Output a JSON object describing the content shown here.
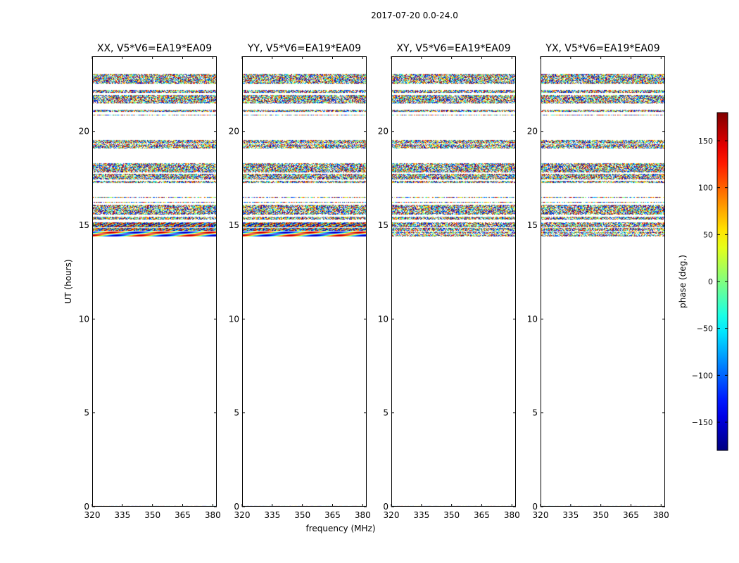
{
  "figure_title": "2017-07-20 0.0-24.0",
  "chart_data": {
    "type": "heatmap",
    "title": "2017-07-20 0.0-24.0",
    "xlabel": "frequency (MHz)",
    "ylabel": "UT (hours)",
    "xlim": [
      320,
      382
    ],
    "ylim": [
      0,
      24
    ],
    "x_ticks": [
      320,
      335,
      350,
      365,
      380
    ],
    "y_ticks": [
      0,
      5,
      10,
      15,
      20
    ],
    "panels": [
      {
        "title": "XX, V5*V6=EA19*EA09",
        "fringe": true
      },
      {
        "title": "YY, V5*V6=EA19*EA09",
        "fringe": true
      },
      {
        "title": "XY, V5*V6=EA19*EA09",
        "fringe": false
      },
      {
        "title": "YX, V5*V6=EA19*EA09",
        "fringe": false
      }
    ],
    "data_bands_ut": [
      [
        22.55,
        23.05
      ],
      [
        22.05,
        22.2
      ],
      [
        21.5,
        21.95
      ],
      [
        21.05,
        21.15
      ],
      [
        20.85,
        20.9
      ],
      [
        19.35,
        19.55
      ],
      [
        19.1,
        19.3
      ],
      [
        17.8,
        18.3
      ],
      [
        17.45,
        17.75
      ],
      [
        17.25,
        17.35
      ],
      [
        16.45,
        16.5
      ],
      [
        16.2,
        16.25
      ],
      [
        15.55,
        16.1
      ],
      [
        15.3,
        15.45
      ],
      [
        14.9,
        15.15
      ],
      [
        14.7,
        14.85
      ],
      [
        14.55,
        14.65
      ],
      [
        14.4,
        14.5
      ],
      [
        0.0,
        0.05
      ]
    ],
    "colorbar": {
      "label": "phase (deg.)",
      "range": [
        -180,
        180
      ],
      "ticks": [
        -150,
        -100,
        -50,
        0,
        50,
        100,
        150
      ],
      "tick_labels": [
        "−150",
        "−100",
        "−50",
        "0",
        "50",
        "100",
        "150"
      ],
      "colormap": "jet"
    }
  }
}
